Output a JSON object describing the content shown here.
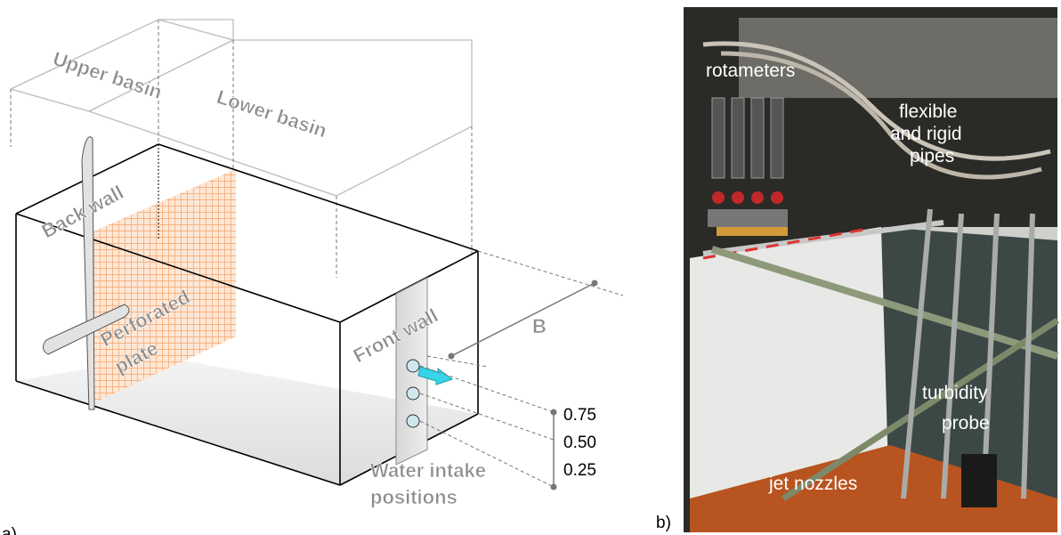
{
  "panel_a": {
    "label": "a)",
    "upper_basin": "Upper basin",
    "lower_basin": "Lower basin",
    "back_wall": "Back wall",
    "perforated_plate": [
      "Perforated",
      "plate"
    ],
    "front_wall": "Front wall",
    "dimension": "B",
    "intake_levels": [
      "0.75",
      "0.50",
      "0.25"
    ],
    "water_intake": [
      "Water intake",
      "positions"
    ]
  },
  "panel_b": {
    "label": "b)",
    "rotameters": "rotameters",
    "pipes": [
      "flexible",
      "and rigid",
      "pipes"
    ],
    "probe": [
      "turbidity",
      "probe"
    ],
    "nozzles": "jet nozzles"
  }
}
